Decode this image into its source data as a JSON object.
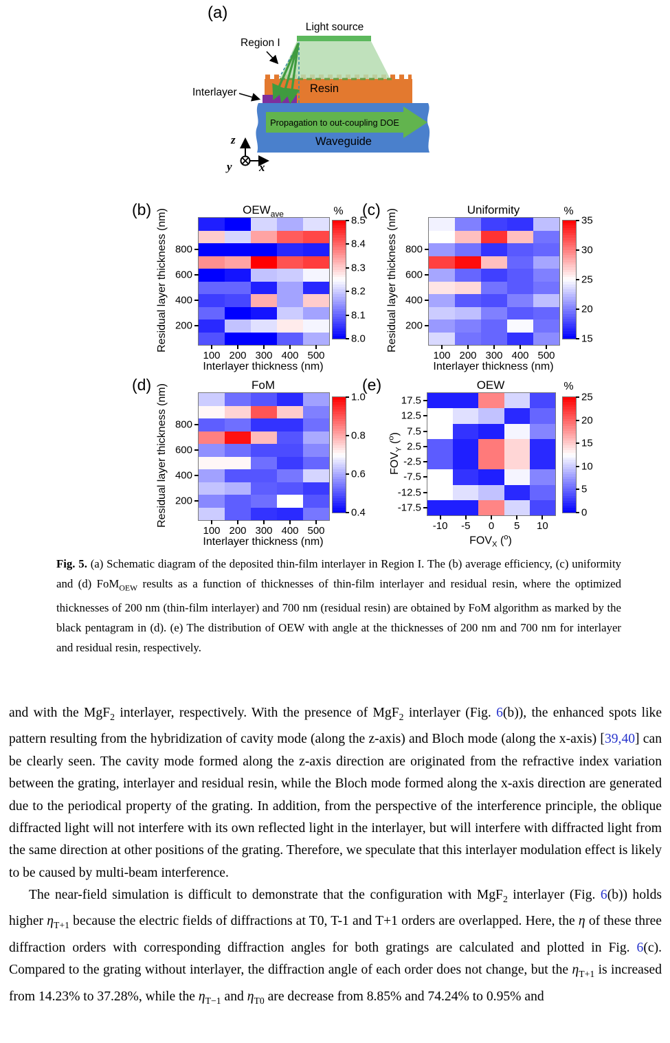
{
  "figure": {
    "schematic": {
      "tag": "(a)",
      "labels": {
        "light_source": "Light source",
        "region": "Region I",
        "interlayer": "Interlayer",
        "resin": "Resin",
        "propagation": "Propagation to out-coupling DOE",
        "waveguide": "Waveguide",
        "axis_z": "z",
        "axis_y": "y",
        "axis_x": "x"
      },
      "colors": {
        "resin": "#e3792f",
        "interlayer": "#7d2f9e",
        "waveguide": "#4a80cc",
        "light_source": "#5cb85c",
        "beam": "#b5dcb0",
        "propagation_arrow": "#62b44e",
        "diffraction_arrow": "#3f9b3f",
        "dashed_guide": "#3a8fa3",
        "dashed_resin_top": "#6b9a3f"
      }
    },
    "caption_segments": [
      {
        "t": "Fig. 5.",
        "s": "b"
      },
      {
        "t": "  (a) Schematic diagram of the deposited thin-film interlayer in Region I. The (b) average efficiency, (c) uniformity and (d) FoM"
      },
      {
        "t": "OEW",
        "s": "sub"
      },
      {
        "t": " results as a function of thicknesses of thin-film interlayer and residual resin, where the optimized thicknesses of 200 nm (thin-film interlayer) and 700 nm (residual resin) are obtained by FoM algorithm as marked by the black pentagram in (d). (e) The distribution of OEW with angle at the thicknesses of 200 nm and 700 nm for interlayer and residual resin, respectively."
      }
    ]
  },
  "chart_data": [
    {
      "type": "heatmap",
      "id": "b",
      "tag": "(b)",
      "title": "OEW_ave",
      "title_segments": [
        {
          "t": "OEW"
        },
        {
          "t": "ave",
          "s": "sub"
        }
      ],
      "xlabel": "Interlayer thickness (nm)",
      "xlabel_segments": [
        {
          "t": "Interlayer thickness (nm)"
        }
      ],
      "ylabel": "Residual layer thickness (nm)",
      "ylabel_segments": [
        {
          "t": "Residual layer thickness (nm)"
        }
      ],
      "x_categories": [
        100,
        200,
        300,
        400,
        500
      ],
      "y_categories": [
        1000,
        900,
        800,
        700,
        600,
        500,
        400,
        300,
        200,
        100
      ],
      "xticks": [
        {
          "label": "100",
          "col": 0
        },
        {
          "label": "200",
          "col": 1
        },
        {
          "label": "300",
          "col": 2
        },
        {
          "label": "400",
          "col": 3
        },
        {
          "label": "500",
          "col": 4
        }
      ],
      "yticks": [
        {
          "label": "800",
          "row": 2
        },
        {
          "label": "600",
          "row": 4
        },
        {
          "label": "400",
          "row": 6
        },
        {
          "label": "200",
          "row": 8
        }
      ],
      "vmin": 8.0,
      "vmax": 8.5,
      "cbar_unit": "%",
      "cbar_ticks": [
        "8.5",
        "8.4",
        "8.3",
        "8.2",
        "8.1",
        "8.0"
      ],
      "colormap": "blue-white-red",
      "values": [
        [
          8.03,
          8.0,
          8.21,
          8.17,
          8.22
        ],
        [
          8.3,
          8.21,
          8.34,
          8.41,
          8.43
        ],
        [
          8.0,
          8.0,
          8.0,
          8.04,
          8.03
        ],
        [
          8.36,
          8.34,
          8.5,
          8.42,
          8.44
        ],
        [
          8.0,
          8.02,
          8.19,
          8.2,
          8.24
        ],
        [
          8.1,
          8.1,
          8.03,
          8.16,
          8.04
        ],
        [
          8.06,
          8.07,
          8.33,
          8.16,
          8.3
        ],
        [
          8.1,
          8.0,
          8.02,
          8.2,
          8.16
        ],
        [
          8.04,
          8.19,
          8.22,
          8.27,
          8.24
        ],
        [
          8.08,
          8.0,
          8.0,
          8.09,
          8.17
        ]
      ]
    },
    {
      "type": "heatmap",
      "id": "c",
      "tag": "(c)",
      "title": "Uniformity",
      "title_segments": [
        {
          "t": "Uniformity"
        }
      ],
      "xlabel": "Interlayer thickness (nm)",
      "xlabel_segments": [
        {
          "t": "Interlayer thickness (nm)"
        }
      ],
      "ylabel": "Residual layer thickness (nm)",
      "ylabel_segments": [
        {
          "t": "Residual layer thickness (nm)"
        }
      ],
      "x_categories": [
        100,
        200,
        300,
        400,
        500
      ],
      "y_categories": [
        1000,
        900,
        800,
        700,
        600,
        500,
        400,
        300,
        200,
        100
      ],
      "xticks": [
        {
          "label": "100",
          "col": 0
        },
        {
          "label": "200",
          "col": 1
        },
        {
          "label": "300",
          "col": 2
        },
        {
          "label": "400",
          "col": 3
        },
        {
          "label": "500",
          "col": 4
        }
      ],
      "yticks": [
        {
          "label": "800",
          "row": 2
        },
        {
          "label": "600",
          "row": 4
        },
        {
          "label": "400",
          "row": 6
        },
        {
          "label": "200",
          "row": 8
        }
      ],
      "vmin": 15,
      "vmax": 35,
      "cbar_unit": "%",
      "cbar_ticks": [
        "35",
        "30",
        "25",
        "20",
        "15"
      ],
      "colormap": "blue-white-red",
      "values": [
        [
          24.5,
          20,
          17.5,
          17,
          22.5
        ],
        [
          25,
          27.5,
          33,
          27.5,
          19.5
        ],
        [
          21,
          19.5,
          17,
          18.5,
          19
        ],
        [
          32.5,
          34.5,
          27.5,
          19,
          21.5
        ],
        [
          21.5,
          19,
          17.5,
          18.5,
          20
        ],
        [
          26,
          26.5,
          19.5,
          18.5,
          19.5
        ],
        [
          21.5,
          18.5,
          18,
          20,
          22.5
        ],
        [
          23,
          22.5,
          20,
          18.5,
          19
        ],
        [
          21,
          20,
          19,
          24.8,
          19.5
        ],
        [
          23.5,
          19.5,
          19,
          17,
          20.5
        ]
      ]
    },
    {
      "type": "heatmap",
      "id": "d",
      "tag": "(d)",
      "title": "FoM",
      "title_segments": [
        {
          "t": "FoM"
        }
      ],
      "xlabel": "Interlayer thickness (nm)",
      "xlabel_segments": [
        {
          "t": "Interlayer thickness (nm)"
        }
      ],
      "ylabel": "Residual layer thickness (nm)",
      "ylabel_segments": [
        {
          "t": "Residual layer thickness (nm)"
        }
      ],
      "x_categories": [
        100,
        200,
        300,
        400,
        500
      ],
      "y_categories": [
        1000,
        900,
        800,
        700,
        600,
        500,
        400,
        300,
        200,
        100
      ],
      "xticks": [
        {
          "label": "100",
          "col": 0
        },
        {
          "label": "200",
          "col": 1
        },
        {
          "label": "300",
          "col": 2
        },
        {
          "label": "400",
          "col": 3
        },
        {
          "label": "500",
          "col": 4
        }
      ],
      "yticks": [
        {
          "label": "800",
          "row": 2
        },
        {
          "label": "600",
          "row": 4
        },
        {
          "label": "400",
          "row": 6
        },
        {
          "label": "200",
          "row": 8
        }
      ],
      "vmin": 0.4,
      "vmax": 1.0,
      "cbar_unit": "",
      "cbar_ticks": [
        "1.0",
        "0.8",
        "0.6",
        "0.4"
      ],
      "colormap": "blue-white-red",
      "values": [
        [
          0.64,
          0.53,
          0.5,
          0.45,
          0.59
        ],
        [
          0.71,
          0.75,
          0.9,
          0.76,
          0.55
        ],
        [
          0.51,
          0.53,
          0.46,
          0.46,
          0.53
        ],
        [
          0.85,
          0.98,
          0.78,
          0.5,
          0.6
        ],
        [
          0.57,
          0.53,
          0.49,
          0.49,
          0.56
        ],
        [
          0.71,
          0.71,
          0.53,
          0.47,
          0.52
        ],
        [
          0.59,
          0.5,
          0.5,
          0.54,
          0.65
        ],
        [
          0.63,
          0.61,
          0.51,
          0.5,
          0.47
        ],
        [
          0.56,
          0.51,
          0.53,
          0.7,
          0.5
        ],
        [
          0.64,
          0.51,
          0.46,
          0.45,
          0.54
        ]
      ]
    },
    {
      "type": "heatmap",
      "id": "e",
      "tag": "(e)",
      "title": "OEW",
      "title_segments": [
        {
          "t": "OEW"
        }
      ],
      "xlabel": "FOV_X (°)",
      "xlabel_segments": [
        {
          "t": "FOV"
        },
        {
          "t": "X",
          "s": "sub"
        },
        {
          "t": " ("
        },
        {
          "t": "o",
          "s": "sup"
        },
        {
          "t": ")"
        }
      ],
      "ylabel": "FOV_Y (°)",
      "ylabel_segments": [
        {
          "t": "FOV"
        },
        {
          "t": "Y",
          "s": "sub"
        },
        {
          "t": " ("
        },
        {
          "t": "o",
          "s": "sup"
        },
        {
          "t": ")"
        }
      ],
      "x_categories": [
        -10,
        -5,
        0,
        5,
        10
      ],
      "y_categories": [
        17.5,
        12.5,
        7.5,
        2.5,
        -2.5,
        -7.5,
        -12.5,
        -17.5
      ],
      "xticks": [
        {
          "label": "-10",
          "col": 0
        },
        {
          "label": "-5",
          "col": 1
        },
        {
          "label": "0",
          "col": 2
        },
        {
          "label": "5",
          "col": 3
        },
        {
          "label": "10",
          "col": 4
        }
      ],
      "yticks": [
        {
          "label": "17.5",
          "row": 0
        },
        {
          "label": "12.5",
          "row": 1
        },
        {
          "label": "7.5",
          "row": 2
        },
        {
          "label": "2.5",
          "row": 3
        },
        {
          "label": "-2.5",
          "row": 4
        },
        {
          "label": "-7.5",
          "row": 5
        },
        {
          "label": "-12.5",
          "row": 6
        },
        {
          "label": "-17.5",
          "row": 7
        }
      ],
      "vmin": 0,
      "vmax": 25,
      "cbar_unit": "%",
      "cbar_ticks": [
        "25",
        "20",
        "15",
        "10",
        "5",
        "0"
      ],
      "colormap": "blue-white-red",
      "values": [
        [
          1.5,
          1.5,
          18.5,
          10.5,
          3.5
        ],
        [
          12.5,
          11,
          9.5,
          2,
          5
        ],
        [
          12.5,
          2.5,
          1.5,
          12,
          6.5
        ],
        [
          4.5,
          1.5,
          19,
          14.5,
          2
        ],
        [
          4.5,
          1.5,
          19,
          14.5,
          2
        ],
        [
          12.5,
          2.5,
          1.5,
          12,
          6.5
        ],
        [
          12.5,
          11,
          9.5,
          2,
          5
        ],
        [
          1.5,
          1.5,
          18.5,
          10.5,
          3.5
        ]
      ]
    }
  ],
  "body": {
    "link_color": "#2633cc",
    "paragraphs": [
      {
        "segments": [
          {
            "t": "and with the MgF"
          },
          {
            "t": "2",
            "s": "sub"
          },
          {
            "t": " interlayer, respectively. With the presence of MgF"
          },
          {
            "t": "2",
            "s": "sub"
          },
          {
            "t": " interlayer (Fig. "
          },
          {
            "t": "6",
            "s": "link"
          },
          {
            "t": "(b)), the enhanced spots like pattern resulting from the hybridization of cavity mode (along the z-axis) and Bloch mode (along the x-axis) ["
          },
          {
            "t": "39,40",
            "s": "link"
          },
          {
            "t": "] can be clearly seen. The cavity mode formed along the z-axis direction are originated from the refractive index variation between the grating, interlayer and residual resin, while the Bloch mode formed along the x-axis direction are generated due to the periodical property of the grating. In addition, from the perspective of the interference principle, the oblique diffracted light will not interfere with its own reflected light in the interlayer, but will interfere with diffracted light from the same direction at other positions of the grating. Therefore, we speculate that this interlayer modulation effect is likely to be caused by multi-beam interference."
          }
        ]
      },
      {
        "segments": [
          {
            "t": "The near-field simulation is difficult to demonstrate that the configuration with MgF"
          },
          {
            "t": "2",
            "s": "sub"
          },
          {
            "t": " interlayer (Fig. "
          },
          {
            "t": "6",
            "s": "link"
          },
          {
            "t": "(b)) holds higher "
          },
          {
            "t": "η",
            "s": "i"
          },
          {
            "t": "T+1",
            "s": "sub"
          },
          {
            "t": " because the electric fields of diffractions at T0, T-1 and T+1 orders are overlapped.  Here, the "
          },
          {
            "t": "η",
            "s": "i"
          },
          {
            "t": " of these three diffraction orders with corresponding diffraction angles for both gratings are calculated and plotted in Fig. "
          },
          {
            "t": "6",
            "s": "link"
          },
          {
            "t": "(c). Compared to the grating without interlayer, the diffraction angle of each order does not change, but the "
          },
          {
            "t": "η",
            "s": "i"
          },
          {
            "t": "T+1",
            "s": "sub"
          },
          {
            "t": " is increased from 14.23% to 37.28%, while the "
          },
          {
            "t": "η",
            "s": "i"
          },
          {
            "t": "T−1",
            "s": "sub"
          },
          {
            "t": " and "
          },
          {
            "t": "η",
            "s": "i"
          },
          {
            "t": "T0",
            "s": "sub"
          },
          {
            "t": " are decrease from 8.85% and 74.24% to 0.95% and"
          }
        ]
      }
    ]
  }
}
